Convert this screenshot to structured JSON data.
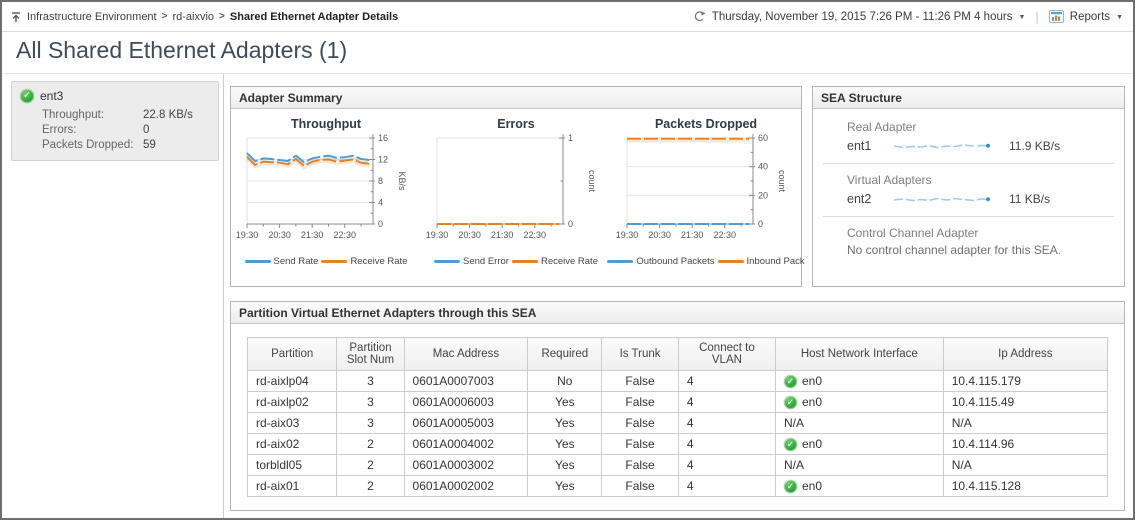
{
  "icons": {
    "check": "✓",
    "caret": "▼"
  },
  "colors": {
    "series_blue": "#4b9cd8",
    "series_orange": "#e8821e",
    "sparkline_blue": "#9ccde9",
    "sparkline_dot": "#3a8fc7",
    "status_green": "#27a22b"
  },
  "header": {
    "breadcrumb": {
      "items": [
        "Infrastructure Environment",
        "rd-aixvio",
        "Shared Ethernet Adapter Details"
      ],
      "separator": ">"
    },
    "time_range": "Thursday, November 19, 2015 7:26 PM - 11:26 PM 4 hours",
    "reports_label": "Reports"
  },
  "page_title": "All Shared Ethernet Adapters (1)",
  "adapter_tile": {
    "name": "ent3",
    "status": "ok",
    "metrics": [
      {
        "label": "Throughput:",
        "value": "22.8 KB/s"
      },
      {
        "label": "Errors:",
        "value": "0"
      },
      {
        "label": "Packets Dropped:",
        "value": "59"
      }
    ]
  },
  "adapter_summary": {
    "title": "Adapter Summary"
  },
  "chart_data": [
    {
      "type": "line",
      "title": "Throughput",
      "ylabel": "KB/s",
      "ylim": [
        0,
        16
      ],
      "yticks": [
        0,
        4,
        8,
        12,
        16
      ],
      "xticklabels": [
        "19:30",
        "20:30",
        "21:30",
        "22:30"
      ],
      "x_minutes_span": 232,
      "point_interval_min": 15,
      "grid": true,
      "legend_position": "bottom",
      "series": [
        {
          "name": "Send Rate",
          "color": "#4b9cd8",
          "values": [
            13.2,
            11.7,
            12.2,
            12.1,
            11.9,
            11.7,
            12.7,
            11.5,
            12.2,
            12.5,
            12.7,
            12.3,
            12.4,
            12.7,
            12.1,
            11.9
          ]
        },
        {
          "name": "Receive Rate",
          "color": "#e8821e",
          "values": [
            12.5,
            11.0,
            11.6,
            11.5,
            11.4,
            11.1,
            12.1,
            10.8,
            11.6,
            11.9,
            12.0,
            11.6,
            11.8,
            12.0,
            11.4,
            11.2
          ]
        }
      ]
    },
    {
      "type": "line",
      "title": "Errors",
      "ylabel": "count",
      "ylim": [
        0,
        1
      ],
      "yticks": [
        0,
        1
      ],
      "xticklabels": [
        "19:30",
        "20:30",
        "21:30",
        "22:30"
      ],
      "x_minutes_span": 232,
      "point_interval_min": 15,
      "grid": true,
      "legend_position": "bottom",
      "series": [
        {
          "name": "Send Error",
          "color": "#4b9cd8",
          "values": [
            0,
            0,
            0,
            0,
            0,
            0,
            0,
            0,
            0,
            0,
            0,
            0,
            0,
            0,
            0,
            0
          ]
        },
        {
          "name": "Receive Rate",
          "color": "#e8821e",
          "values": [
            0,
            0,
            0,
            0,
            0,
            0,
            0,
            0,
            0,
            0,
            0,
            0,
            0,
            0,
            0,
            0
          ]
        }
      ]
    },
    {
      "type": "line",
      "title": "Packets Dropped",
      "ylabel": "count",
      "ylim": [
        0,
        60
      ],
      "yticks": [
        0,
        20,
        40,
        60
      ],
      "xticklabels": [
        "19:30",
        "20:30",
        "21:30",
        "22:30"
      ],
      "x_minutes_span": 232,
      "point_interval_min": 15,
      "grid": true,
      "legend_position": "bottom",
      "series": [
        {
          "name": "Outbound Packets",
          "color": "#4b9cd8",
          "values": [
            0,
            0,
            0,
            0,
            0,
            0,
            0,
            0,
            0,
            0,
            0,
            0,
            0,
            0,
            0,
            0
          ]
        },
        {
          "name": "Inbound Pack",
          "color": "#e8821e",
          "values": [
            59.5,
            59.5,
            59.5,
            59.5,
            59.5,
            59.5,
            59.5,
            59.5,
            59.5,
            59.5,
            59.5,
            59.5,
            59.5,
            59.5,
            59.5,
            59.5
          ]
        }
      ]
    }
  ],
  "sea_structure": {
    "title": "SEA Structure",
    "real_adapter": {
      "label": "Real Adapter",
      "name": "ent1",
      "rate": "11.9 KB/s"
    },
    "virtual_adapters": {
      "label": "Virtual Adapters",
      "name": "ent2",
      "rate": "11 KB/s"
    },
    "control_channel": {
      "label": "Control Channel Adapter",
      "note": "No control channel adapter for this SEA."
    }
  },
  "partition_table": {
    "title": "Partition Virtual Ethernet Adapters through this SEA",
    "columns": [
      "Partition",
      "Partition Slot Num",
      "Mac Address",
      "Required",
      "Is Trunk",
      "Connect to VLAN",
      "Host Network Interface",
      "Ip Address"
    ],
    "rows": [
      {
        "partition": "rd-aixlp04",
        "slot": "3",
        "mac": "0601A0007003",
        "required": "No",
        "is_trunk": "False",
        "vlan": "4",
        "host_if": "en0",
        "host_if_status": "ok",
        "ip": "10.4.115.179"
      },
      {
        "partition": "rd-aixlp02",
        "slot": "3",
        "mac": "0601A0006003",
        "required": "Yes",
        "is_trunk": "False",
        "vlan": "4",
        "host_if": "en0",
        "host_if_status": "ok",
        "ip": "10.4.115.49"
      },
      {
        "partition": "rd-aix03",
        "slot": "3",
        "mac": "0601A0005003",
        "required": "Yes",
        "is_trunk": "False",
        "vlan": "4",
        "host_if": "N/A",
        "host_if_status": "na",
        "ip": "N/A"
      },
      {
        "partition": "rd-aix02",
        "slot": "2",
        "mac": "0601A0004002",
        "required": "Yes",
        "is_trunk": "False",
        "vlan": "4",
        "host_if": "en0",
        "host_if_status": "ok",
        "ip": "10.4.114.96"
      },
      {
        "partition": "torbldl05",
        "slot": "2",
        "mac": "0601A0003002",
        "required": "Yes",
        "is_trunk": "False",
        "vlan": "4",
        "host_if": "N/A",
        "host_if_status": "na",
        "ip": "N/A"
      },
      {
        "partition": "rd-aix01",
        "slot": "2",
        "mac": "0601A0002002",
        "required": "Yes",
        "is_trunk": "False",
        "vlan": "4",
        "host_if": "en0",
        "host_if_status": "ok",
        "ip": "10.4.115.128"
      }
    ]
  }
}
